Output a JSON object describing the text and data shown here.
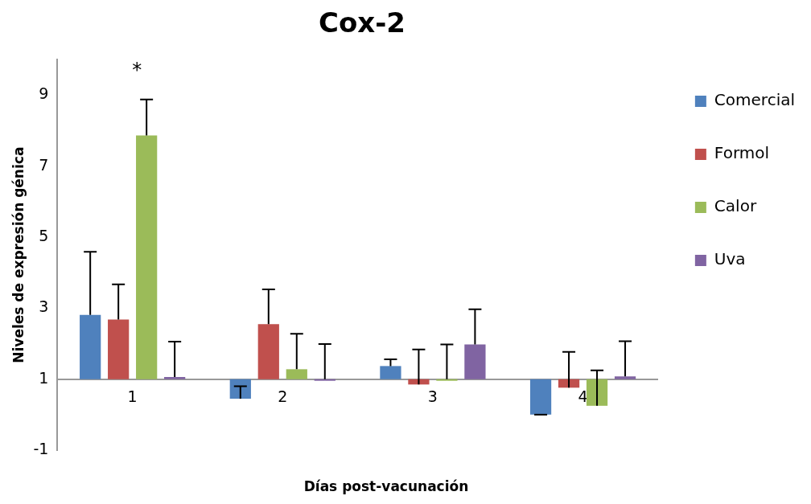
{
  "chart_data": {
    "type": "bar",
    "title": "Cox-2",
    "xlabel": "Días post-vacunación",
    "ylabel": "Niveles de expresión génica",
    "categories": [
      "1",
      "2",
      "3",
      "4"
    ],
    "series": [
      {
        "name": "Comercial",
        "color": "#4f81bd",
        "base": [
          1,
          1,
          1,
          1
        ],
        "values": [
          1.81,
          -0.55,
          0.37,
          -1.0
        ],
        "errors": [
          [
            2.81,
            4.59
          ],
          [
            0.45,
            0.8
          ],
          [
            1.37,
            1.56
          ],
          [
            0,
            0
          ]
        ]
      },
      {
        "name": "Formol",
        "color": "#c0504d",
        "base": [
          1,
          1,
          1,
          1
        ],
        "values": [
          1.68,
          1.55,
          -0.15,
          -0.24
        ],
        "errors": [
          [
            2.68,
            3.67
          ],
          [
            2.55,
            3.53
          ],
          [
            0.85,
            1.84
          ],
          [
            0.76,
            1.77
          ]
        ]
      },
      {
        "name": "Calor",
        "color": "#9bbb59",
        "base": [
          1,
          1,
          1,
          1
        ],
        "values": [
          6.87,
          0.28,
          0,
          -0.75
        ],
        "errors": [
          [
            7.87,
            8.88
          ],
          [
            1.28,
            2.28
          ],
          [
            1,
            1.98
          ],
          [
            0.25,
            1.25
          ]
        ]
      },
      {
        "name": "Uva",
        "color": "#8064a2",
        "base": [
          1,
          1,
          1,
          1
        ],
        "values": [
          0.06,
          0,
          0.98,
          0.08
        ],
        "errors": [
          [
            1.06,
            2.06
          ],
          [
            1,
            1.99
          ],
          [
            1.98,
            2.97
          ],
          [
            1.08,
            2.07
          ]
        ]
      }
    ],
    "ylim": [
      -1,
      10
    ],
    "yticks": [
      -1,
      1,
      3,
      5,
      7,
      9
    ],
    "grid": false,
    "legend": "top right",
    "annotations": [
      "*"
    ]
  }
}
